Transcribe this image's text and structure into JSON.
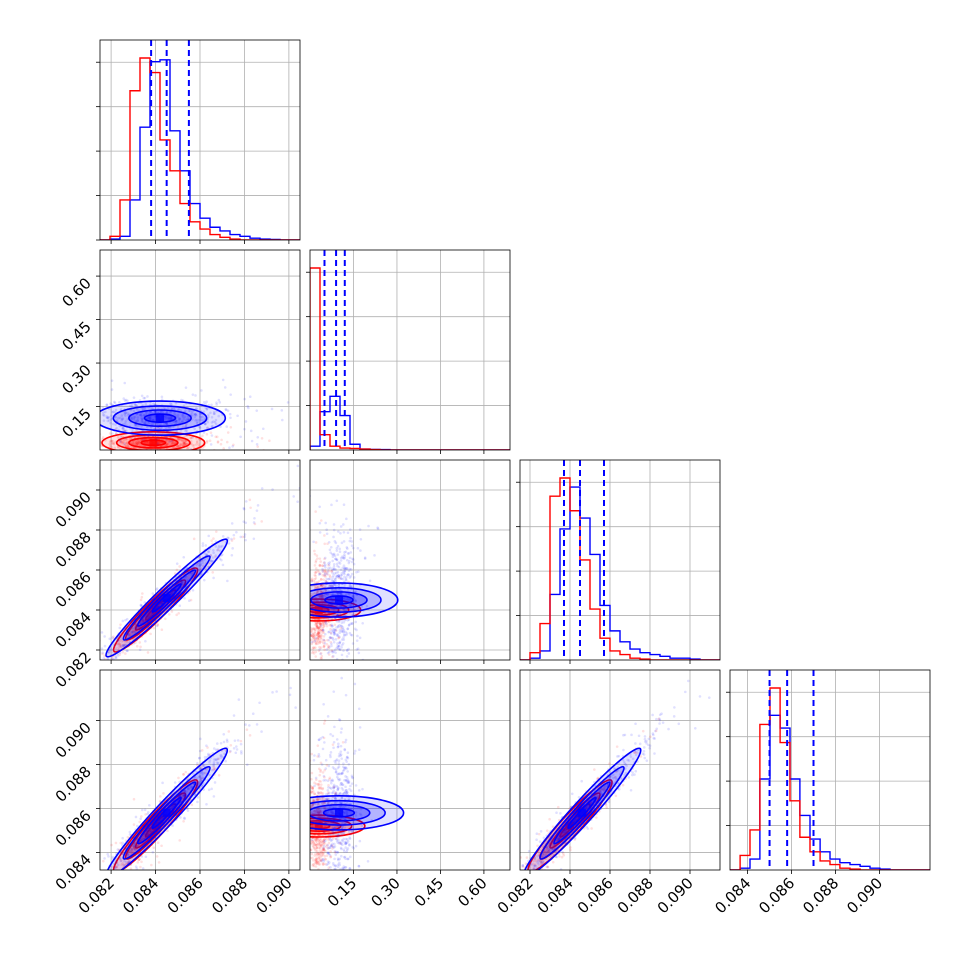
{
  "chart_data": {
    "type": "corner",
    "grid": true,
    "series": [
      {
        "color": "#0000ff"
      },
      {
        "color": "#ff0000"
      }
    ],
    "tick_labels": {
      "x0": [
        "0.082",
        "0.084",
        "0.086",
        "0.088",
        "0.090"
      ],
      "x1": [
        "0.15",
        "0.30",
        "0.45",
        "0.60"
      ],
      "x2": [
        "0.082",
        "0.084",
        "0.086",
        "0.088",
        "0.090"
      ],
      "x3": [
        "0.084",
        "0.086",
        "0.088",
        "0.090"
      ],
      "y1": [
        "0.15",
        "0.30",
        "0.45",
        "0.60"
      ],
      "y2": [
        "0.082",
        "0.084",
        "0.086",
        "0.088",
        "0.090"
      ],
      "y3": [
        "0.084",
        "0.086",
        "0.088",
        "0.090"
      ]
    },
    "params": [
      {
        "range": [
          0.0815,
          0.0905
        ],
        "ticks": [
          0.082,
          0.084,
          0.086,
          0.088,
          0.09
        ],
        "quantiles": [
          0.0838,
          0.0845,
          0.0855
        ]
      },
      {
        "range": [
          0.0,
          0.69
        ],
        "ticks": [
          0.15,
          0.3,
          0.45,
          0.6
        ],
        "quantiles": [
          0.05,
          0.09,
          0.12
        ]
      },
      {
        "range": [
          0.0815,
          0.0915
        ],
        "ticks": [
          0.082,
          0.084,
          0.086,
          0.088,
          0.09
        ],
        "quantiles": [
          0.0837,
          0.0845,
          0.0857
        ]
      },
      {
        "range": [
          0.0832,
          0.0923
        ],
        "ticks": [
          0.084,
          0.086,
          0.088,
          0.09
        ],
        "quantiles": [
          0.085,
          0.0858,
          0.087
        ]
      }
    ],
    "histograms": [
      {
        "edges": [
          0.0815,
          0.08195,
          0.0824,
          0.08285,
          0.0833,
          0.08375,
          0.0842,
          0.08465,
          0.0851,
          0.08555,
          0.086,
          0.08645,
          0.0869,
          0.08735,
          0.0878,
          0.08825,
          0.0887,
          0.08915,
          0.0896,
          0.09005,
          0.0905
        ],
        "blue": [
          0,
          0.005,
          0.02,
          0.22,
          0.62,
          0.98,
          0.99,
          0.6,
          0.38,
          0.2,
          0.12,
          0.07,
          0.05,
          0.03,
          0.02,
          0.01,
          0.005,
          0.003,
          0,
          0
        ],
        "red": [
          0,
          0.02,
          0.22,
          0.82,
          1.0,
          0.92,
          0.55,
          0.38,
          0.2,
          0.1,
          0.06,
          0.03,
          0.015,
          0.005,
          0,
          0,
          0,
          0,
          0,
          0
        ]
      },
      {
        "edges": [
          0.0,
          0.0345,
          0.069,
          0.1035,
          0.138,
          0.1725,
          0.207,
          0.2415,
          0.276,
          0.3105,
          0.345,
          0.3795,
          0.414,
          0.4485,
          0.483,
          0.5175,
          0.552,
          0.5865,
          0.621,
          0.6555,
          0.69
        ],
        "blue": [
          0.02,
          0.2,
          0.28,
          0.18,
          0.03,
          0.005,
          0.003,
          0.002,
          0,
          0,
          0,
          0,
          0,
          0,
          0,
          0,
          0,
          0,
          0,
          0
        ],
        "red": [
          0.95,
          0.08,
          0.02,
          0.01,
          0.008,
          0.005,
          0.002,
          0,
          0,
          0,
          0,
          0,
          0,
          0,
          0,
          0,
          0,
          0,
          0,
          0
        ]
      },
      {
        "edges": [
          0.0815,
          0.082,
          0.0825,
          0.083,
          0.0835,
          0.084,
          0.0845,
          0.085,
          0.0855,
          0.086,
          0.0865,
          0.087,
          0.0875,
          0.088,
          0.0885,
          0.089,
          0.0895,
          0.09,
          0.0905,
          0.091,
          0.0915
        ],
        "blue": [
          0,
          0.01,
          0.05,
          0.36,
          0.72,
          0.95,
          0.78,
          0.58,
          0.3,
          0.16,
          0.1,
          0.06,
          0.04,
          0.03,
          0.02,
          0.01,
          0.01,
          0.005,
          0,
          0
        ],
        "red": [
          0,
          0.04,
          0.2,
          0.9,
          1.0,
          0.82,
          0.55,
          0.28,
          0.12,
          0.05,
          0.03,
          0.01,
          0.005,
          0,
          0,
          0,
          0,
          0,
          0,
          0
        ]
      },
      {
        "edges": [
          0.0832,
          0.08366,
          0.08411,
          0.08456,
          0.08502,
          0.08548,
          0.08593,
          0.08638,
          0.08684,
          0.0873,
          0.08775,
          0.0882,
          0.08866,
          0.08912,
          0.08957,
          0.09002,
          0.09048,
          0.09094,
          0.09139,
          0.09184,
          0.0923
        ],
        "blue": [
          0,
          0.01,
          0.06,
          0.5,
          0.85,
          0.78,
          0.5,
          0.3,
          0.17,
          0.1,
          0.06,
          0.04,
          0.03,
          0.02,
          0.01,
          0.005,
          0,
          0,
          0,
          0
        ],
        "red": [
          0,
          0.08,
          0.22,
          0.8,
          1.0,
          0.7,
          0.38,
          0.18,
          0.1,
          0.05,
          0.03,
          0.01,
          0.005,
          0,
          0,
          0,
          0,
          0,
          0,
          0
        ]
      }
    ],
    "blobs": [
      {
        "row": 1,
        "col": 0,
        "blue": {
          "cx": 0.0842,
          "cy": 0.11,
          "sx": 0.0014,
          "sy": 0.028,
          "rho": 0.0
        },
        "red": {
          "cx": 0.0839,
          "cy": 0.025,
          "sx": 0.0011,
          "sy": 0.018,
          "rho": 0.0
        }
      },
      {
        "row": 2,
        "col": 0,
        "blue": {
          "cx": 0.0845,
          "cy": 0.0846,
          "sx": 0.0013,
          "sy": 0.0014,
          "rho": 0.97
        },
        "red": {
          "cx": 0.084,
          "cy": 0.084,
          "sx": 0.0009,
          "sy": 0.001,
          "rho": 0.95
        }
      },
      {
        "row": 2,
        "col": 1,
        "blue": {
          "cx": 0.1,
          "cy": 0.0845,
          "sx": 0.028,
          "sy": 0.0014,
          "rho": 0.0
        },
        "red": {
          "cx": 0.03,
          "cy": 0.084,
          "sx": 0.018,
          "sy": 0.001,
          "rho": 0.0
        }
      },
      {
        "row": 3,
        "col": 0,
        "blue": {
          "cx": 0.0845,
          "cy": 0.0858,
          "sx": 0.0013,
          "sy": 0.0014,
          "rho": 0.97
        },
        "red": {
          "cx": 0.084,
          "cy": 0.0852,
          "sx": 0.0009,
          "sy": 0.001,
          "rho": 0.95
        }
      },
      {
        "row": 3,
        "col": 1,
        "blue": {
          "cx": 0.1,
          "cy": 0.0858,
          "sx": 0.028,
          "sy": 0.0014,
          "rho": 0.0
        },
        "red": {
          "cx": 0.03,
          "cy": 0.0852,
          "sx": 0.018,
          "sy": 0.001,
          "rho": 0.0
        }
      },
      {
        "row": 3,
        "col": 2,
        "blue": {
          "cx": 0.0846,
          "cy": 0.0858,
          "sx": 0.0014,
          "sy": 0.0014,
          "rho": 0.97
        },
        "red": {
          "cx": 0.084,
          "cy": 0.0852,
          "sx": 0.001,
          "sy": 0.001,
          "rho": 0.95
        }
      }
    ]
  }
}
